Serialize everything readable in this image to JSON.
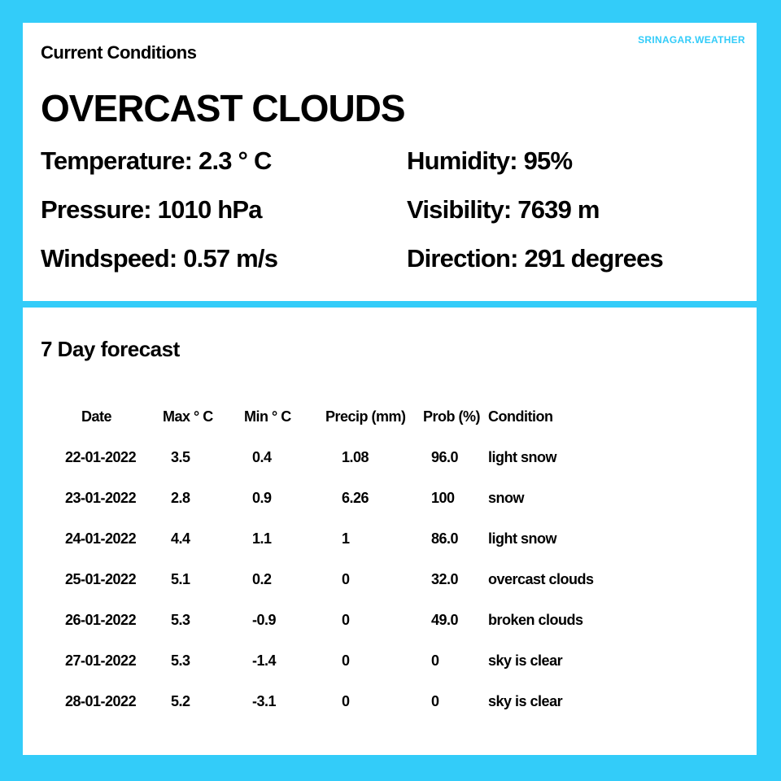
{
  "brand": "SRINAGAR.WEATHER",
  "current": {
    "title": "Current Conditions",
    "condition": "OVERCAST CLOUDS",
    "stats": [
      {
        "label": "Temperature:",
        "value": "2.3 ° C"
      },
      {
        "label": "Humidity:",
        "value": "95%"
      },
      {
        "label": "Pressure:",
        "value": "1010 hPa"
      },
      {
        "label": "Visibility:",
        "value": "7639 m"
      },
      {
        "label": "Windspeed:",
        "value": "0.57 m/s"
      },
      {
        "label": "Direction:",
        "value": "291 degrees"
      }
    ]
  },
  "forecast": {
    "title": "7 Day forecast",
    "columns": [
      "Date",
      "Max ° C",
      "Min ° C",
      "Precip (mm)",
      "Prob (%)",
      "Condition"
    ],
    "rows": [
      [
        "22-01-2022",
        "3.5",
        "0.4",
        "1.08",
        "96.0",
        "light snow"
      ],
      [
        "23-01-2022",
        "2.8",
        "0.9",
        "6.26",
        "100",
        "snow"
      ],
      [
        "24-01-2022",
        "4.4",
        "1.1",
        "1",
        "86.0",
        "light snow"
      ],
      [
        "25-01-2022",
        "5.1",
        "0.2",
        "0",
        "32.0",
        "overcast clouds"
      ],
      [
        "26-01-2022",
        "5.3",
        "-0.9",
        "0",
        "49.0",
        "broken clouds"
      ],
      [
        "27-01-2022",
        "5.3",
        "-1.4",
        "0",
        "0",
        "sky is clear"
      ],
      [
        "28-01-2022",
        "5.2",
        "-3.1",
        "0",
        "0",
        "sky is clear"
      ]
    ]
  },
  "colors": {
    "background": "#33CCF9",
    "panel": "#FFFFFF",
    "brand": "#33CCF9",
    "text": "#000000"
  }
}
